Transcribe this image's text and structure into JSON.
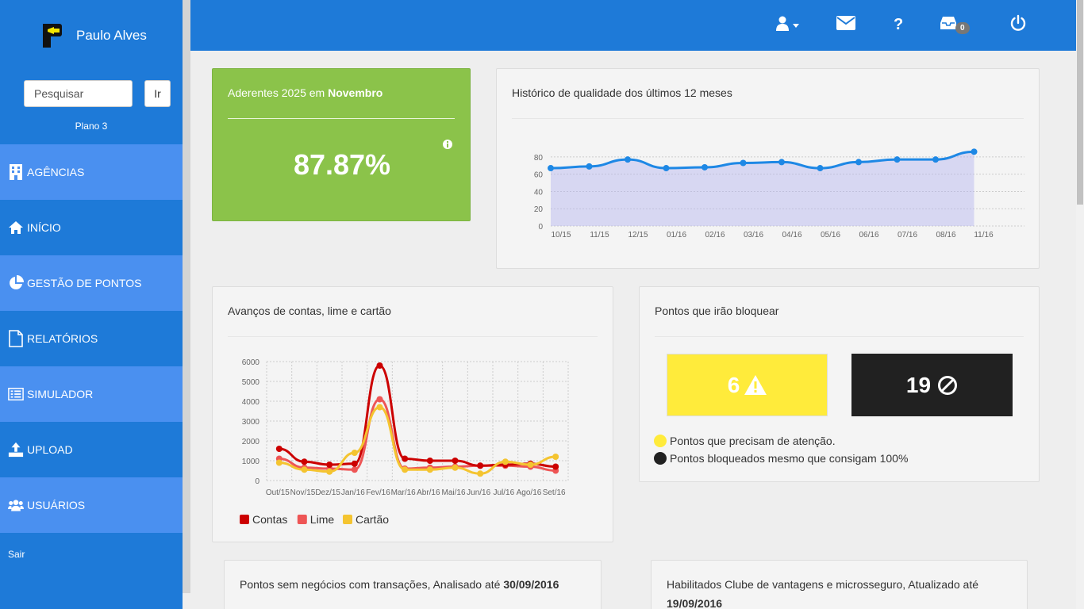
{
  "user": {
    "name": "Paulo Alves"
  },
  "search": {
    "placeholder": "Pesquisar",
    "button": "Ir"
  },
  "plan": "Plano 3",
  "nav": [
    {
      "label": "AGÊNCIAS",
      "icon": "building-icon"
    },
    {
      "label": "INÍCIO",
      "icon": "home-icon"
    },
    {
      "label": "GESTÃO DE PONTOS",
      "icon": "pie-chart-icon"
    },
    {
      "label": "RELATÓRIOS",
      "icon": "file-icon"
    },
    {
      "label": "SIMULADOR",
      "icon": "list-icon"
    },
    {
      "label": "UPLOAD",
      "icon": "upload-icon"
    },
    {
      "label": "USUÁRIOS",
      "icon": "users-icon"
    }
  ],
  "logout": "Sair",
  "topbar": {
    "inbox_count": "0"
  },
  "colors": {
    "primary": "#1e7ad8",
    "nav_item": "#4a90f0",
    "green": "#8bc34a",
    "yellow": "#ffeb3b",
    "dark": "#212121",
    "contas": "#cc0000",
    "lime": "#ee5555",
    "cartao": "#f4c430",
    "line_blue": "#1e88e5"
  },
  "aderentes": {
    "title_prefix": "Aderentes 2025 em",
    "month": "Novembro",
    "value": "87.87%"
  },
  "historico": {
    "title": "Histórico de qualidade dos últimos 12 meses"
  },
  "avancos": {
    "title": "Avanços de contas, lime e cartão"
  },
  "bloquear": {
    "title": "Pontos que irão bloquear",
    "attention_count": "6",
    "blocked_count": "19",
    "legend_attention": "Pontos que precisam de atenção.",
    "legend_blocked": "Pontos bloqueados mesmo que consigam 100%"
  },
  "sem_negocios": {
    "title": "Pontos sem negócios com transações, Analisado até",
    "date": "30/09/2016"
  },
  "habilitados": {
    "title": "Habilitados Clube de vantagens e microsseguro, Atualizado até",
    "date": "19/09/2016"
  },
  "chart_data": [
    {
      "type": "area",
      "title": "Histórico de qualidade dos últimos 12 meses",
      "categories": [
        "10/15",
        "11/15",
        "12/15",
        "01/16",
        "02/16",
        "03/16",
        "04/16",
        "05/16",
        "06/16",
        "07/16",
        "08/16",
        "11/16"
      ],
      "values": [
        67,
        69,
        77,
        67,
        68,
        73,
        74,
        67,
        74,
        77,
        77,
        86
      ],
      "yticks": [
        0,
        20,
        40,
        60,
        80
      ],
      "ylim": [
        0,
        90
      ],
      "grid": true
    },
    {
      "type": "line",
      "title": "Avanços de contas, lime e cartão",
      "categories": [
        "Out/15",
        "Nov/15",
        "Dez/15",
        "Jan/16",
        "Fev/16",
        "Mar/16",
        "Abr/16",
        "Mai/16",
        "Jun/16",
        "Jul/16",
        "Ago/16",
        "Set/16"
      ],
      "yticks": [
        0,
        1000,
        2000,
        3000,
        4000,
        5000,
        6000
      ],
      "ylim": [
        0,
        6000
      ],
      "grid": true,
      "legend": "bottom",
      "series": [
        {
          "name": "Contas",
          "values": [
            1600,
            950,
            800,
            850,
            5800,
            1100,
            1000,
            1000,
            750,
            800,
            850,
            700
          ]
        },
        {
          "name": "Lime",
          "values": [
            1100,
            650,
            600,
            550,
            4100,
            600,
            650,
            700,
            750,
            750,
            700,
            500
          ]
        },
        {
          "name": "Cartão",
          "values": [
            900,
            550,
            450,
            1400,
            3700,
            550,
            550,
            650,
            350,
            950,
            800,
            1200
          ]
        }
      ]
    }
  ]
}
